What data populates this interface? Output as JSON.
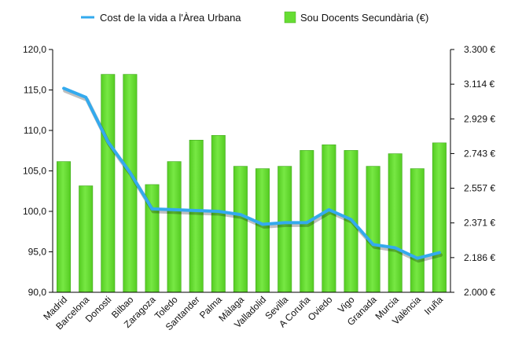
{
  "chart_data": {
    "type": "bar+line",
    "categories": [
      "Madrid",
      "Barcelona",
      "Donosti",
      "Bilbao",
      "Zaragoza",
      "Toledo",
      "Santander",
      "Palma",
      "Màlaga",
      "Valladolid",
      "Sevilla",
      "A Coruña",
      "Oviedo",
      "Vigo",
      "Granada",
      "Murcia",
      "València",
      "Iruña"
    ],
    "series": [
      {
        "name": "Sou Docents Secundària (€)",
        "kind": "bar",
        "axis": "right",
        "color": "#66dd33",
        "values": [
          2700,
          2570,
          3167,
          3167,
          2577,
          2700,
          2815,
          2840,
          2675,
          2662,
          2675,
          2760,
          2790,
          2760,
          2675,
          2742,
          2662,
          2800
        ]
      },
      {
        "name": "Cost de la vida a l'Àrea Urbana",
        "kind": "line",
        "axis": "left",
        "color": "#33aaee",
        "values": [
          115.2,
          114.1,
          108.6,
          104.8,
          100.3,
          100.2,
          100.1,
          100.0,
          99.6,
          98.4,
          98.6,
          98.6,
          100.2,
          99.0,
          95.9,
          95.5,
          94.2,
          94.9
        ]
      }
    ],
    "left_axis": {
      "ylim": [
        90,
        120
      ],
      "ticks": [
        "90,0",
        "95,0",
        "100,0",
        "105,0",
        "110,0",
        "115,0",
        "120,0"
      ]
    },
    "right_axis": {
      "ylim": [
        2000,
        3300
      ],
      "ticks": [
        "2.000 €",
        "2.186 €",
        "2.371 €",
        "2.557 €",
        "2.743 €",
        "2.929 €",
        "3.114 €",
        "3.300 €"
      ]
    },
    "grid": false,
    "legend_position": "top"
  }
}
